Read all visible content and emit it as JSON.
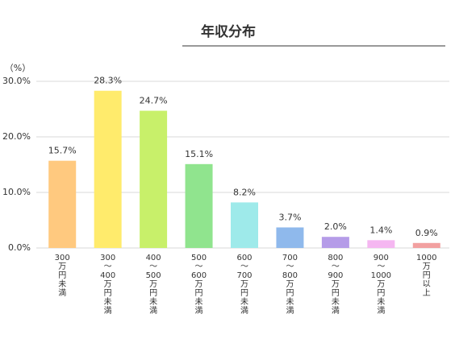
{
  "chart_data": {
    "type": "bar",
    "title": "年収分布",
    "y_label": "（%）",
    "categories": [
      "300万円未満",
      "300～400万円未満",
      "400～500万円未満",
      "500～600万円未満",
      "600～700万円未満",
      "700～800万円未満",
      "800～900万円未満",
      "900～1000万円未満",
      "1000万円以上"
    ],
    "values": [
      15.7,
      28.3,
      24.7,
      15.1,
      8.2,
      3.7,
      2.0,
      1.4,
      0.9
    ],
    "value_labels": [
      "15.7%",
      "28.3%",
      "24.7%",
      "15.1%",
      "8.2%",
      "3.7%",
      "2.0%",
      "1.4%",
      "0.9%"
    ],
    "colors": [
      "#ffc97f",
      "#ffeb6c",
      "#c8f06a",
      "#90e48e",
      "#9eeaea",
      "#8fb9ec",
      "#b59ce8",
      "#f5b7f1",
      "#f2a0a0"
    ],
    "ylim": [
      0,
      30
    ],
    "yticks": [
      {
        "value": 0,
        "label": "0.0%"
      },
      {
        "value": 10,
        "label": "10.0%"
      },
      {
        "value": 20,
        "label": "20.0%"
      },
      {
        "value": 30,
        "label": "30.0%"
      }
    ],
    "grid": true
  }
}
